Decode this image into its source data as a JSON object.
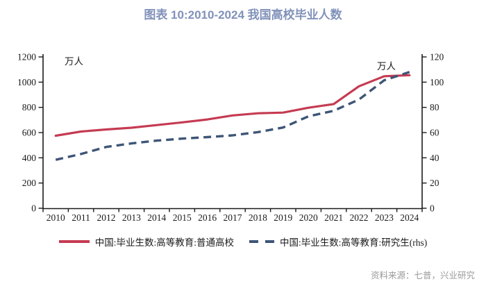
{
  "title": "图表 10:2010-2024 我国高校毕业人数",
  "title_color": "#8191B9",
  "axes": {
    "left_unit": "万人",
    "right_unit": "万人",
    "left_ticks": [
      0,
      200,
      400,
      600,
      800,
      1000,
      1200
    ],
    "right_ticks": [
      0,
      20,
      40,
      60,
      80,
      100,
      120
    ]
  },
  "chart_data": {
    "type": "line",
    "title": "图表 10:2010-2024 我国高校毕业人数",
    "categories": [
      "2010",
      "2011",
      "2012",
      "2013",
      "2014",
      "2015",
      "2016",
      "2017",
      "2018",
      "2019",
      "2020",
      "2021",
      "2022",
      "2023",
      "2024"
    ],
    "series": [
      {
        "name": "中国:毕业生数:高等教育:普通高校",
        "axis": "left",
        "line_style": "solid",
        "color": "#C53B52",
        "values": [
          575.4,
          608.2,
          624.7,
          638.7,
          659.4,
          680.9,
          704.2,
          735.8,
          753.3,
          758.5,
          797.2,
          826.5,
          967.3,
          1047.0,
          1055.0
        ]
      },
      {
        "name": "中国:毕业生数:高等教育:研究生(rhs)",
        "axis": "right",
        "line_style": "dashed",
        "color": "#3E5577",
        "values": [
          38.4,
          43.0,
          48.6,
          51.4,
          53.6,
          55.2,
          56.4,
          57.8,
          60.4,
          64.0,
          72.9,
          77.3,
          86.2,
          101.5,
          108.0
        ]
      }
    ],
    "ylim_left": [
      0,
      1200
    ],
    "ylim_right": [
      0,
      120
    ],
    "y_tick_step_left": 200,
    "y_tick_step_right": 20,
    "grid": false,
    "legend_position": "bottom"
  },
  "source": "资料来源：七普，兴业研究"
}
